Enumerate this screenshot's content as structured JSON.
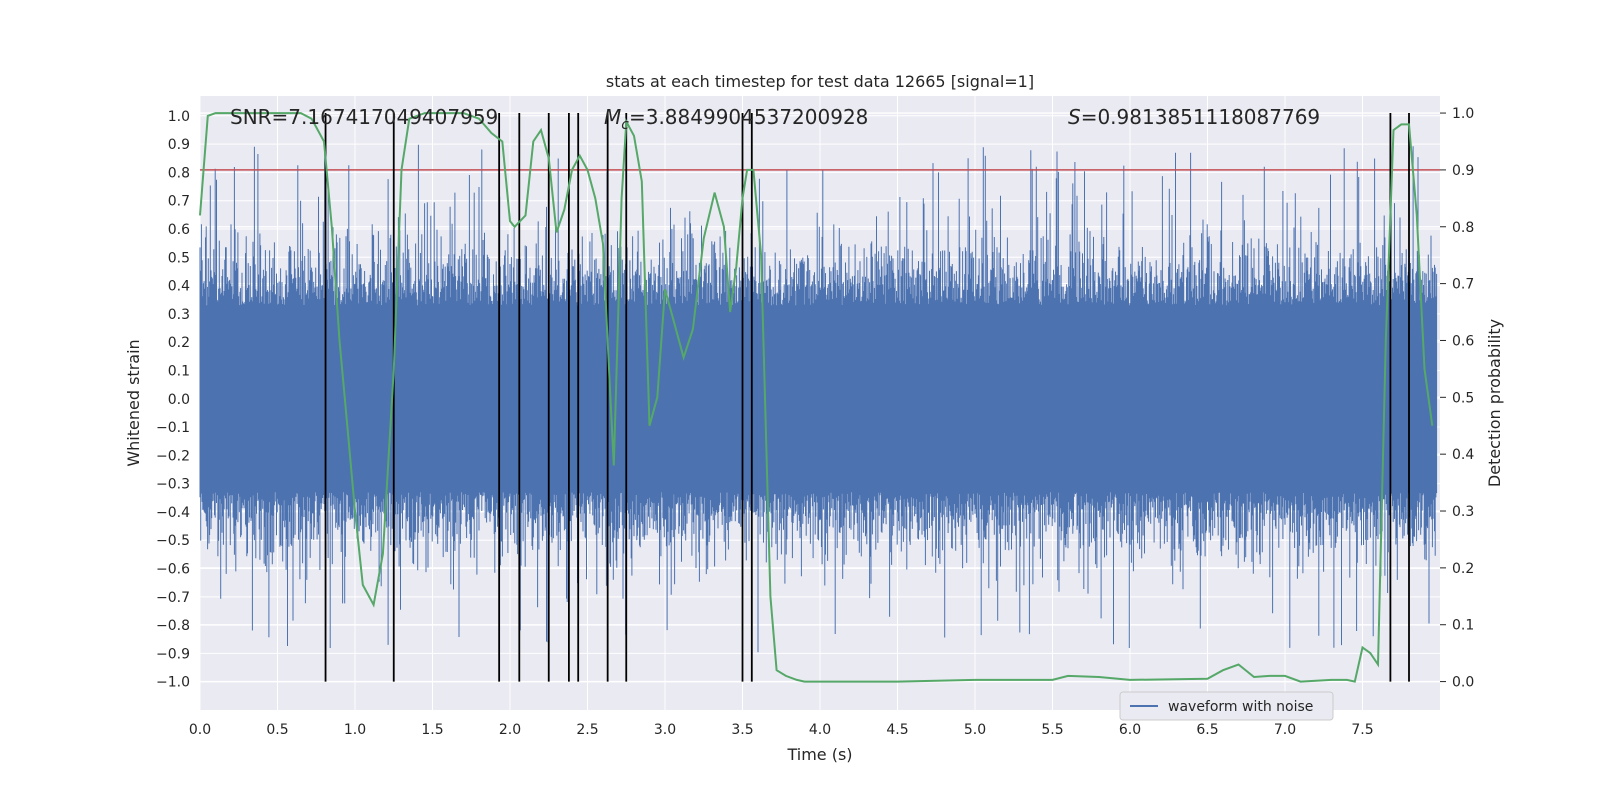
{
  "chart_data": {
    "type": "line",
    "title": "stats at each timestep for test data 12665 [signal=1]",
    "xlabel": "Time (s)",
    "ylabel_left": "Whitened strain",
    "ylabel_right": "Detection probability",
    "xlim": [
      0.0,
      8.0
    ],
    "ylim_left": [
      -1.1,
      1.07
    ],
    "ylim_right": [
      -0.05,
      1.03
    ],
    "x_ticks": [
      "0.0",
      "0.5",
      "1.0",
      "1.5",
      "2.0",
      "2.5",
      "3.0",
      "3.5",
      "4.0",
      "4.5",
      "5.0",
      "5.5",
      "6.0",
      "6.5",
      "7.0",
      "7.5"
    ],
    "y_left_ticks": [
      "1.0",
      "0.9",
      "0.8",
      "0.7",
      "0.6",
      "0.5",
      "0.4",
      "0.3",
      "0.2",
      "0.1",
      "0.0",
      "-0.1",
      "-0.2",
      "-0.3",
      "-0.4",
      "-0.5",
      "-0.6",
      "-0.7",
      "-0.8",
      "-0.9",
      "-1.0"
    ],
    "y_right_ticks": [
      "1.0",
      "0.9",
      "0.8",
      "0.7",
      "0.6",
      "0.5",
      "0.4",
      "0.3",
      "0.2",
      "0.1",
      "0.0"
    ],
    "annotations": {
      "snr": "SNR=7.167417049407959",
      "mc": "=3.8849904537200928",
      "s": "=0.9813851118087769"
    },
    "threshold": 0.9,
    "detection_probability": {
      "t": [
        0.0,
        0.05,
        0.1,
        0.2,
        0.3,
        0.5,
        0.65,
        0.72,
        0.8,
        0.85,
        0.9,
        0.95,
        1.0,
        1.05,
        1.12,
        1.18,
        1.25,
        1.3,
        1.35,
        1.45,
        1.55,
        1.7,
        1.8,
        1.88,
        1.95,
        2.0,
        2.03,
        2.1,
        2.15,
        2.2,
        2.25,
        2.3,
        2.35,
        2.4,
        2.45,
        2.5,
        2.55,
        2.6,
        2.63,
        2.67,
        2.72,
        2.75,
        2.8,
        2.85,
        2.9,
        2.95,
        3.0,
        3.05,
        3.12,
        3.18,
        3.25,
        3.32,
        3.38,
        3.42,
        3.46,
        3.5,
        3.53,
        3.57,
        3.62,
        3.68,
        3.72,
        3.78,
        3.85,
        3.9,
        4.0,
        4.5,
        5.0,
        5.5,
        5.6,
        5.8,
        6.0,
        6.5,
        6.6,
        6.7,
        6.8,
        6.9,
        7.0,
        7.1,
        7.3,
        7.4,
        7.45,
        7.5,
        7.55,
        7.6,
        7.65,
        7.7,
        7.75,
        7.8,
        7.85,
        7.9,
        7.95
      ],
      "p": [
        0.82,
        0.995,
        1.0,
        1.0,
        1.0,
        1.0,
        1.0,
        0.99,
        0.95,
        0.8,
        0.6,
        0.45,
        0.3,
        0.17,
        0.135,
        0.225,
        0.55,
        0.9,
        0.99,
        1.0,
        1.0,
        1.0,
        0.99,
        0.965,
        0.95,
        0.81,
        0.8,
        0.82,
        0.95,
        0.97,
        0.92,
        0.79,
        0.83,
        0.9,
        0.925,
        0.9,
        0.85,
        0.77,
        0.6,
        0.38,
        0.85,
        0.985,
        0.96,
        0.88,
        0.45,
        0.5,
        0.69,
        0.64,
        0.57,
        0.62,
        0.78,
        0.86,
        0.8,
        0.65,
        0.73,
        0.85,
        0.9,
        0.9,
        0.75,
        0.15,
        0.02,
        0.01,
        0.003,
        0.0,
        0.0,
        0.0,
        0.003,
        0.003,
        0.01,
        0.008,
        0.003,
        0.005,
        0.02,
        0.03,
        0.008,
        0.01,
        0.01,
        0.0,
        0.003,
        0.003,
        0.0,
        0.06,
        0.05,
        0.03,
        0.6,
        0.97,
        0.98,
        0.98,
        0.82,
        0.55,
        0.45
      ]
    },
    "vertical_lines_t": [
      0.81,
      1.25,
      1.93,
      2.06,
      2.25,
      2.38,
      2.44,
      2.63,
      2.75,
      3.5,
      3.56,
      7.68,
      7.8
    ],
    "legend": {
      "label": "waveform with noise",
      "position": "lower-right"
    },
    "colors": {
      "background": "#eaeaf2",
      "grid": "#ffffff",
      "waveform": "#4c72b0",
      "probability": "#55a868",
      "threshold": "#c44e52",
      "vlines": "#000000"
    }
  }
}
